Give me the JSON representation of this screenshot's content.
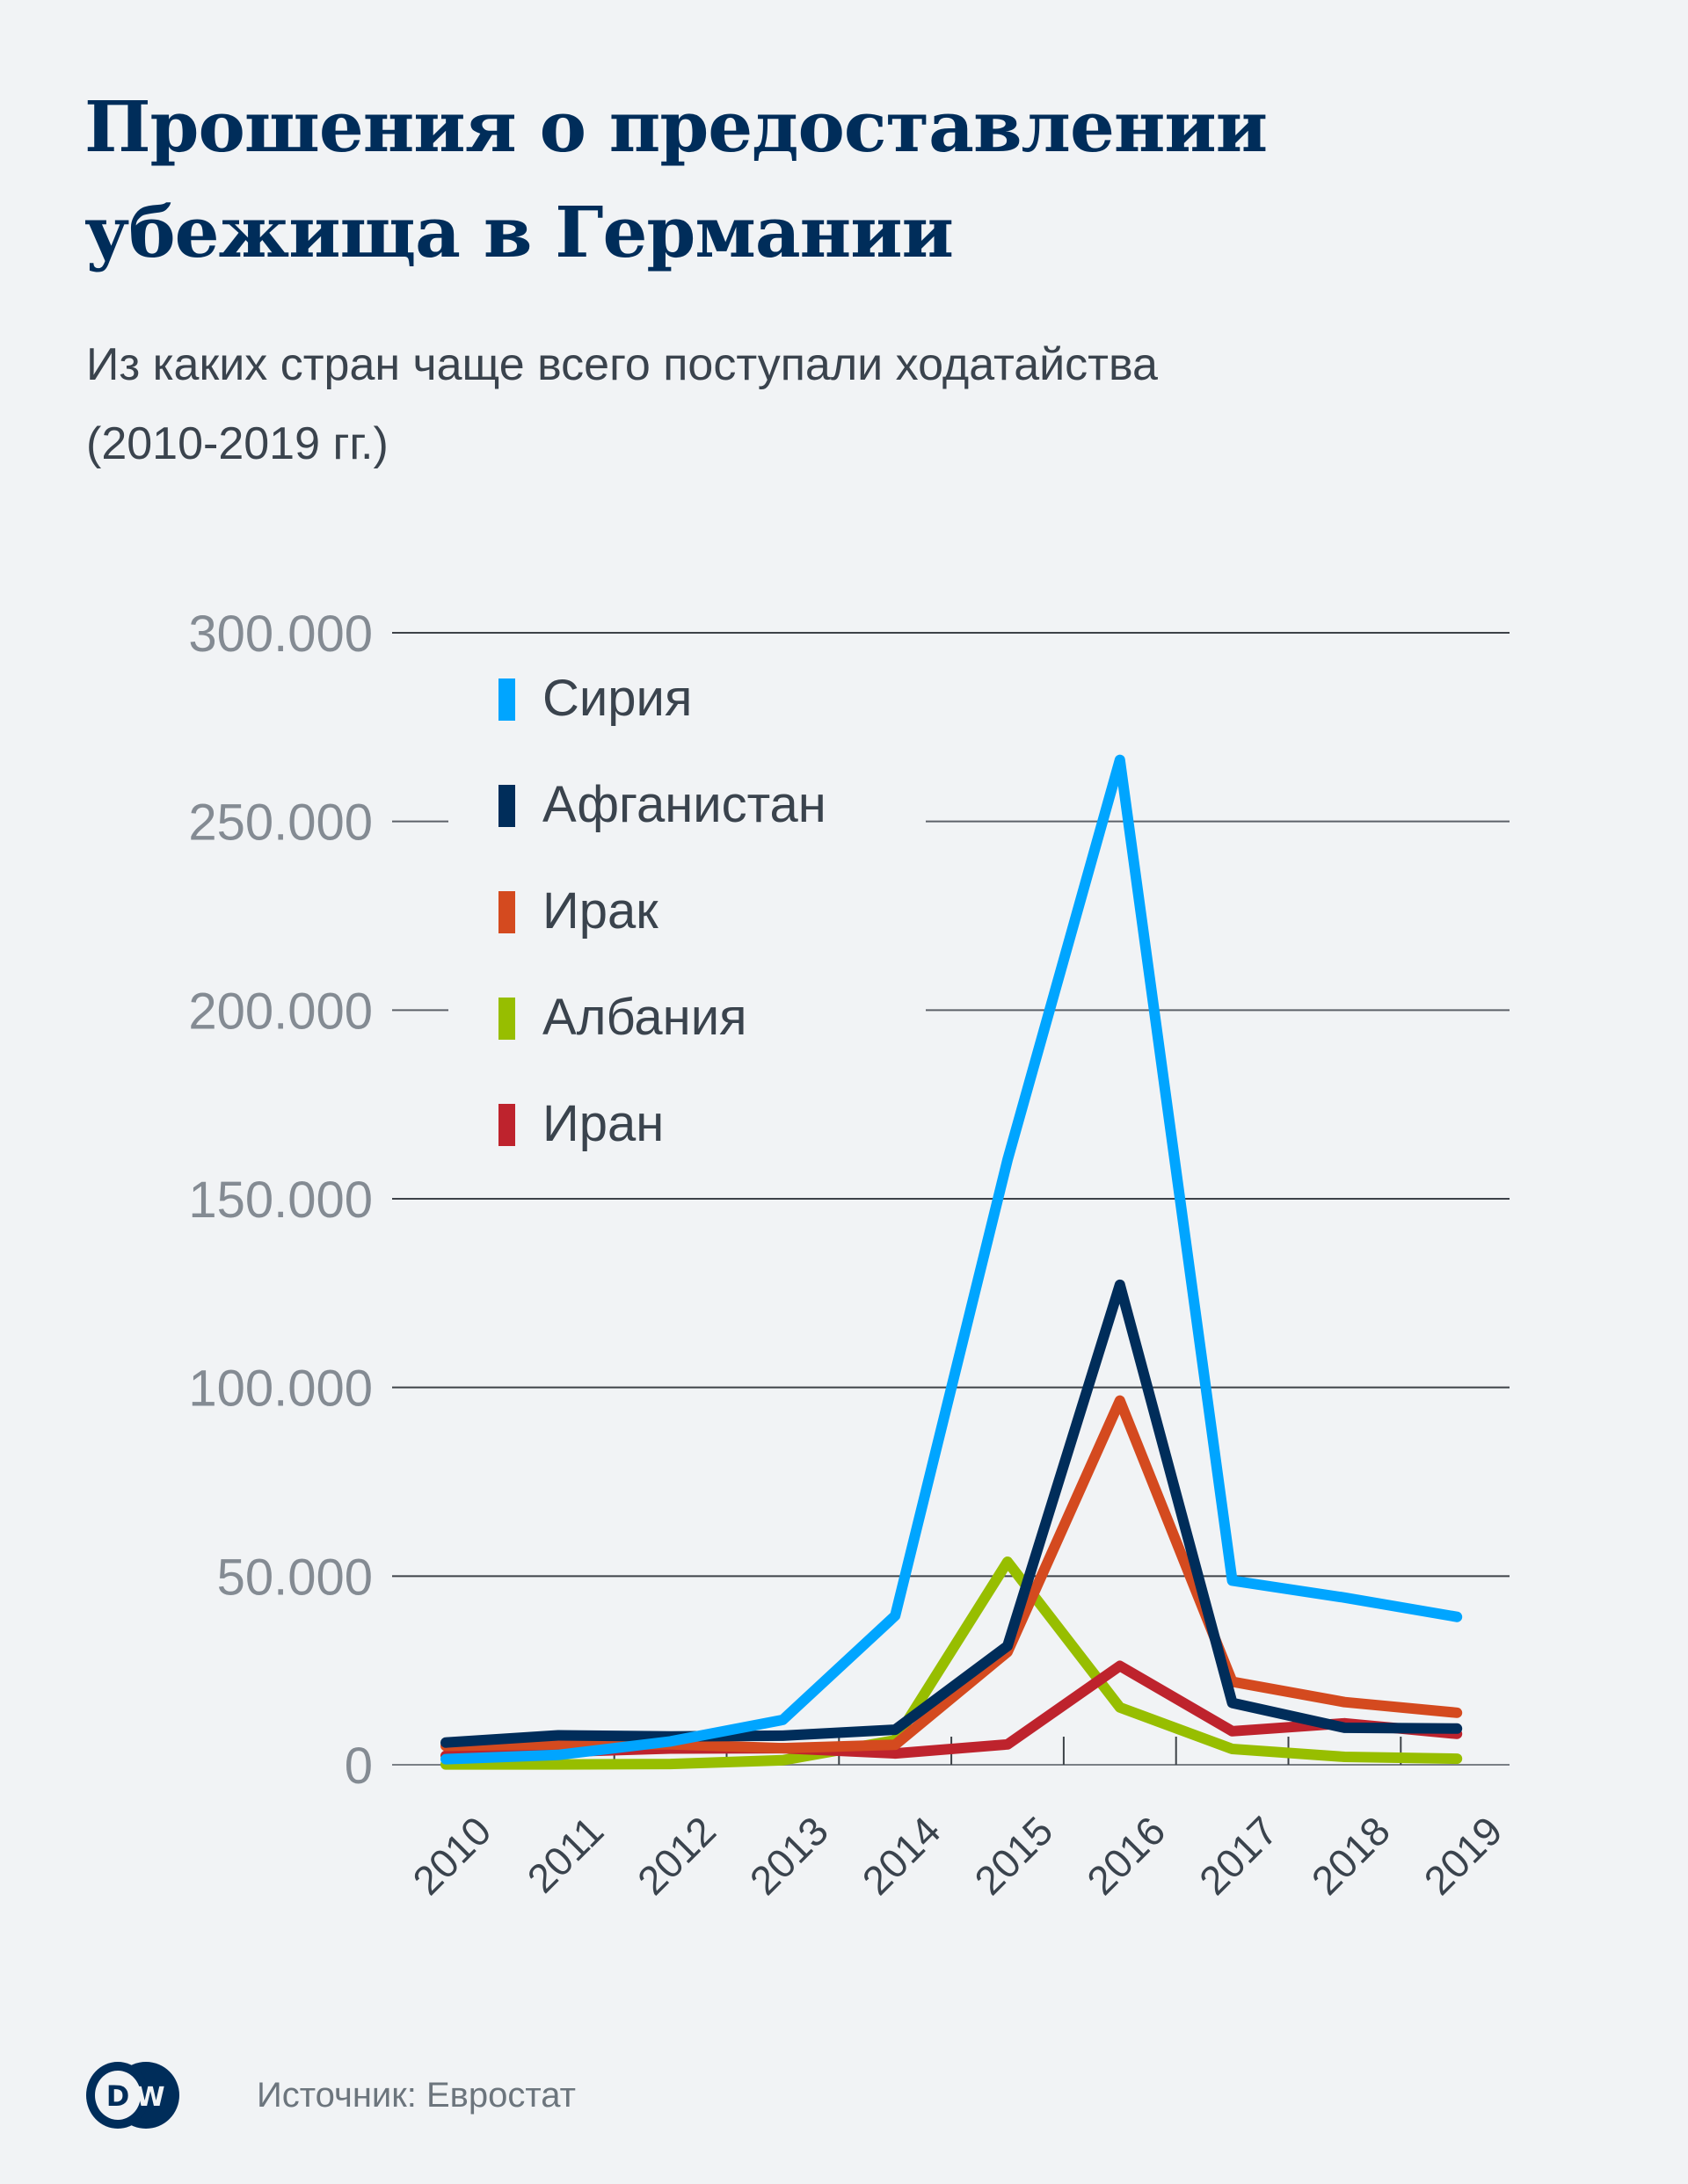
{
  "header": {
    "title_line1": "Прошения о предоставлении",
    "title_line2": "убежища в Германии",
    "subtitle_line1": "Из каких стран чаще всего поступали ходатайства",
    "subtitle_line2": "(2010-2019 гг.)"
  },
  "footer": {
    "logo_text": "DW",
    "source": "Источник: Евростат"
  },
  "chart_data": {
    "type": "line",
    "title": "Прошения о предоставлении убежища в Германии",
    "subtitle": "Из каких стран чаще всего поступали ходатайства (2010-2019 гг.)",
    "xlabel": "",
    "ylabel": "",
    "x": [
      "2010",
      "2011",
      "2012",
      "2013",
      "2014",
      "2015",
      "2016",
      "2017",
      "2018",
      "2019"
    ],
    "ylim": [
      0,
      300000
    ],
    "yticks": [
      0,
      50000,
      100000,
      150000,
      200000,
      250000,
      300000
    ],
    "ytick_labels": [
      "0",
      "50.000",
      "100.000",
      "150.000",
      "200.000",
      "250.000",
      "300.000"
    ],
    "grid": "horizontal",
    "legend_position": "top-left",
    "series": [
      {
        "name": "Сирия",
        "color": "#00a5ff",
        "values": [
          1500,
          2600,
          6200,
          11900,
          39500,
          160300,
          266300,
          48800,
          44300,
          39200
        ]
      },
      {
        "name": "Афганистан",
        "color": "#002d5a",
        "values": [
          5900,
          7800,
          7500,
          7700,
          9300,
          31500,
          127200,
          16400,
          9800,
          9600
        ]
      },
      {
        "name": "Ирак",
        "color": "#d44a1f",
        "values": [
          5000,
          5400,
          5400,
          4400,
          5300,
          29900,
          96500,
          22000,
          16600,
          13800
        ]
      },
      {
        "name": "Албания",
        "color": "#97be00",
        "values": [
          100,
          100,
          200,
          1200,
          6500,
          53800,
          15200,
          4200,
          2100,
          1600
        ]
      },
      {
        "name": "Иран",
        "color": "#be232d",
        "values": [
          2400,
          3400,
          4300,
          4400,
          3000,
          5400,
          26200,
          8900,
          11000,
          8200
        ]
      }
    ]
  }
}
